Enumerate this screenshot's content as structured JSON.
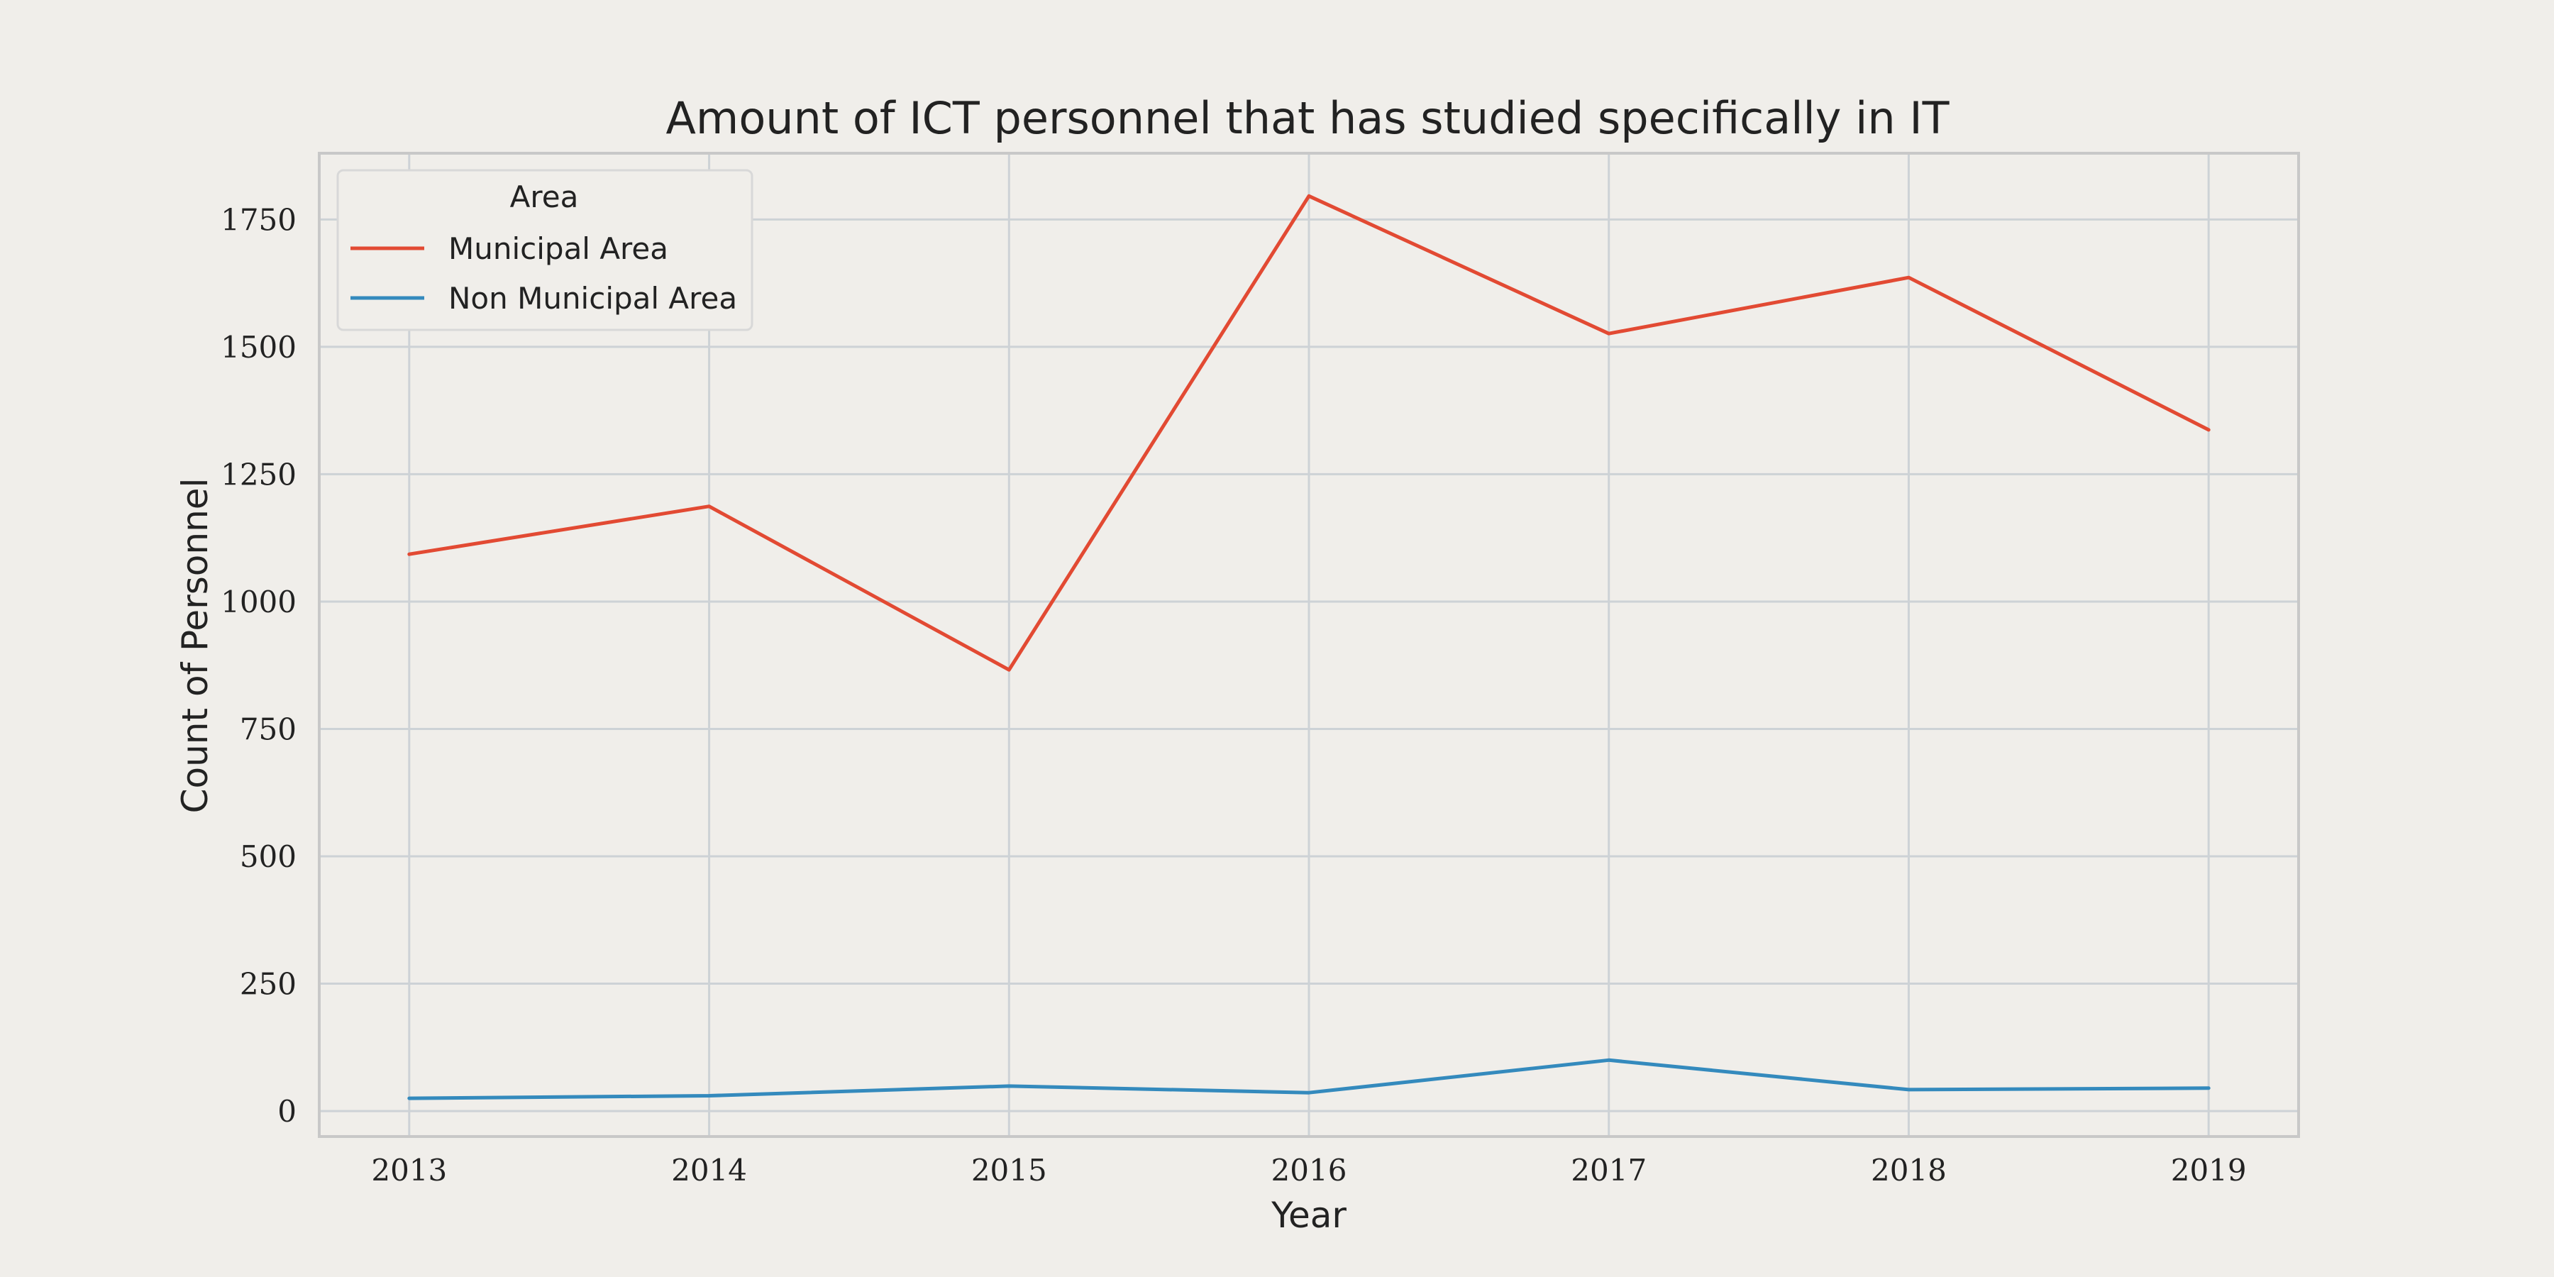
{
  "chart_data": {
    "type": "line",
    "title": "Amount of ICT personnel that has studied specifically in IT",
    "xlabel": "Year",
    "ylabel": "Count of Personnel",
    "x": [
      "2013",
      "2014",
      "2015",
      "2016",
      "2017",
      "2018",
      "2019"
    ],
    "xlim": [
      2012.7,
      2019.3
    ],
    "ylim": [
      -50,
      1880
    ],
    "yticks": [
      0,
      250,
      500,
      750,
      1000,
      1250,
      1500,
      1750
    ],
    "grid": true,
    "legend": {
      "title": "Area",
      "position": "top-left"
    },
    "series": [
      {
        "name": "Municipal Area",
        "color": "#e24a33",
        "values": [
          1093,
          1187,
          866,
          1796,
          1526,
          1636,
          1337
        ]
      },
      {
        "name": "Non Municipal Area",
        "color": "#348abd",
        "values": [
          25,
          30,
          49,
          36,
          100,
          42,
          45
        ]
      }
    ]
  }
}
